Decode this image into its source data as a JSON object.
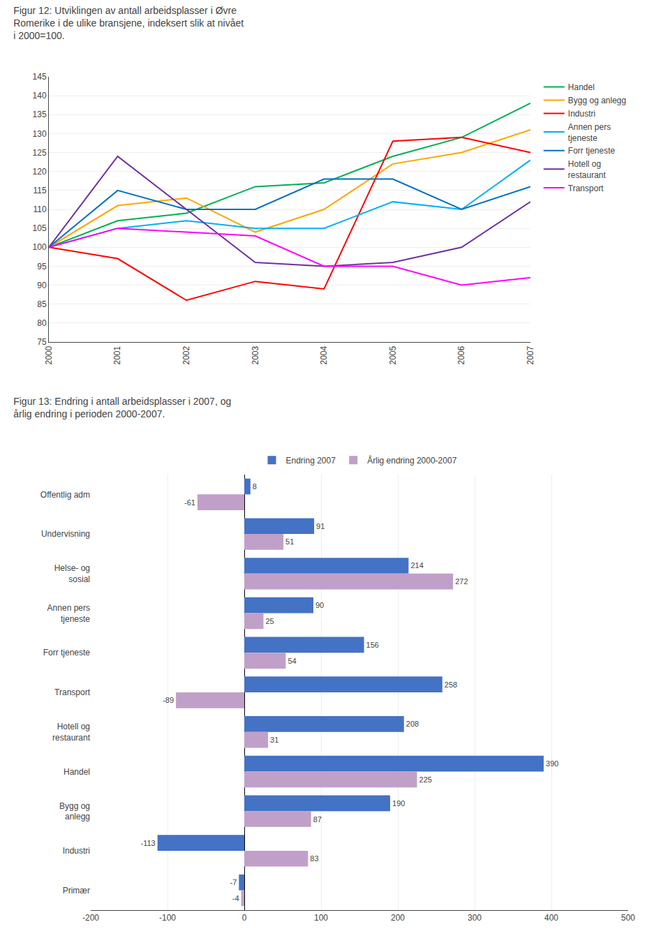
{
  "chart_data": [
    {
      "type": "line",
      "title": "Figur 12: Utviklingen av antall arbeidsplasser i Øvre\nRomerike i de ulike bransjene, indeksert slik at nivået\ni 2000=100.",
      "x": [
        2000,
        2001,
        2002,
        2003,
        2004,
        2005,
        2006,
        2007
      ],
      "series": [
        {
          "name": "Handel",
          "color": "#00b050",
          "values": [
            100,
            107,
            109,
            116,
            117,
            124,
            129,
            138
          ]
        },
        {
          "name": "Bygg og anlegg",
          "color": "#ffa500",
          "values": [
            100,
            111,
            113,
            104,
            110,
            122,
            125,
            131
          ]
        },
        {
          "name": "Industri",
          "color": "#ff0000",
          "values": [
            100,
            97,
            86,
            91,
            89,
            128,
            129,
            125
          ]
        },
        {
          "name": "Annen pers\ntjeneste",
          "color": "#00b0f0",
          "values": [
            100,
            105,
            107,
            105,
            105,
            112,
            110,
            123
          ]
        },
        {
          "name": "Forr tjeneste",
          "color": "#0070c0",
          "values": [
            100,
            115,
            110,
            110,
            118,
            118,
            110,
            116
          ]
        },
        {
          "name": "Hotell og\nrestaurant",
          "color": "#7030a0",
          "values": [
            100,
            124,
            110,
            96,
            95,
            96,
            100,
            112
          ]
        },
        {
          "name": "Transport",
          "color": "#ff00ff",
          "values": [
            100,
            105,
            104,
            103,
            95,
            95,
            90,
            92
          ]
        }
      ],
      "xlim": [
        2000,
        2007
      ],
      "xticks": [
        2000,
        2001,
        2002,
        2003,
        2004,
        2005,
        2006,
        2007
      ],
      "ylim": [
        75,
        145
      ],
      "yticks": [
        75,
        80,
        85,
        90,
        95,
        100,
        105,
        110,
        115,
        120,
        125,
        130,
        135,
        140,
        145
      ],
      "grid": true,
      "legend": "right"
    },
    {
      "type": "bar",
      "orientation": "horizontal",
      "title": "Figur 13: Endring i antall arbeidsplasser i 2007, og\nårlig endring i perioden 2000-2007.",
      "categories": [
        "Offentlig adm",
        "Undervisning",
        "Helse- og\nsosial",
        "Annen pers\ntjeneste",
        "Forr tjeneste",
        "Transport",
        "Hotell og\nrestaurant",
        "Handel",
        "Bygg og\nanlegg",
        "Industri",
        "Primær"
      ],
      "series": [
        {
          "name": "Endring 2007",
          "color": "#4472c4",
          "values": [
            8,
            91,
            214,
            90,
            156,
            258,
            208,
            390,
            190,
            -113,
            -7
          ]
        },
        {
          "name": "Årlig endring 2000-2007",
          "color": "#c0a0c8",
          "values": [
            -61,
            51,
            272,
            25,
            54,
            -89,
            31,
            225,
            87,
            83,
            -4
          ]
        }
      ],
      "xlim": [
        -200,
        500
      ],
      "xticks": [
        -200,
        -100,
        0,
        100,
        200,
        300,
        400,
        500
      ],
      "grid": true,
      "data_labels": true,
      "legend": "top"
    }
  ]
}
